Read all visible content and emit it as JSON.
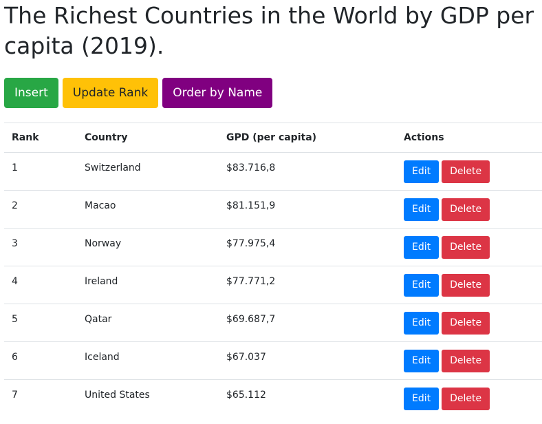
{
  "page": {
    "title": "The Richest Countries in the World by GDP per capita (2019)."
  },
  "toolbar": {
    "insert_label": "Insert",
    "update_rank_label": "Update Rank",
    "order_by_name_label": "Order by Name"
  },
  "table": {
    "headers": {
      "rank": "Rank",
      "country": "Country",
      "gdp": "GPD (per capita)",
      "actions": "Actions"
    },
    "rows": [
      {
        "rank": "1",
        "country": "Switzerland",
        "gdp": "$83.716,8",
        "edit": "Edit",
        "delete": "Delete"
      },
      {
        "rank": "2",
        "country": "Macao",
        "gdp": "$81.151,9",
        "edit": "Edit",
        "delete": "Delete"
      },
      {
        "rank": "3",
        "country": "Norway",
        "gdp": "$77.975,4",
        "edit": "Edit",
        "delete": "Delete"
      },
      {
        "rank": "4",
        "country": "Ireland",
        "gdp": "$77.771,2",
        "edit": "Edit",
        "delete": "Delete"
      },
      {
        "rank": "5",
        "country": "Qatar",
        "gdp": "$69.687,7",
        "edit": "Edit",
        "delete": "Delete"
      },
      {
        "rank": "6",
        "country": "Iceland",
        "gdp": "$67.037",
        "edit": "Edit",
        "delete": "Delete"
      },
      {
        "rank": "7",
        "country": "United States",
        "gdp": "$65.112",
        "edit": "Edit",
        "delete": "Delete"
      }
    ]
  },
  "colors": {
    "insert": "#28a745",
    "update_rank": "#ffc107",
    "order_by_name": "#800080",
    "edit": "#007bff",
    "delete": "#dc3545"
  }
}
